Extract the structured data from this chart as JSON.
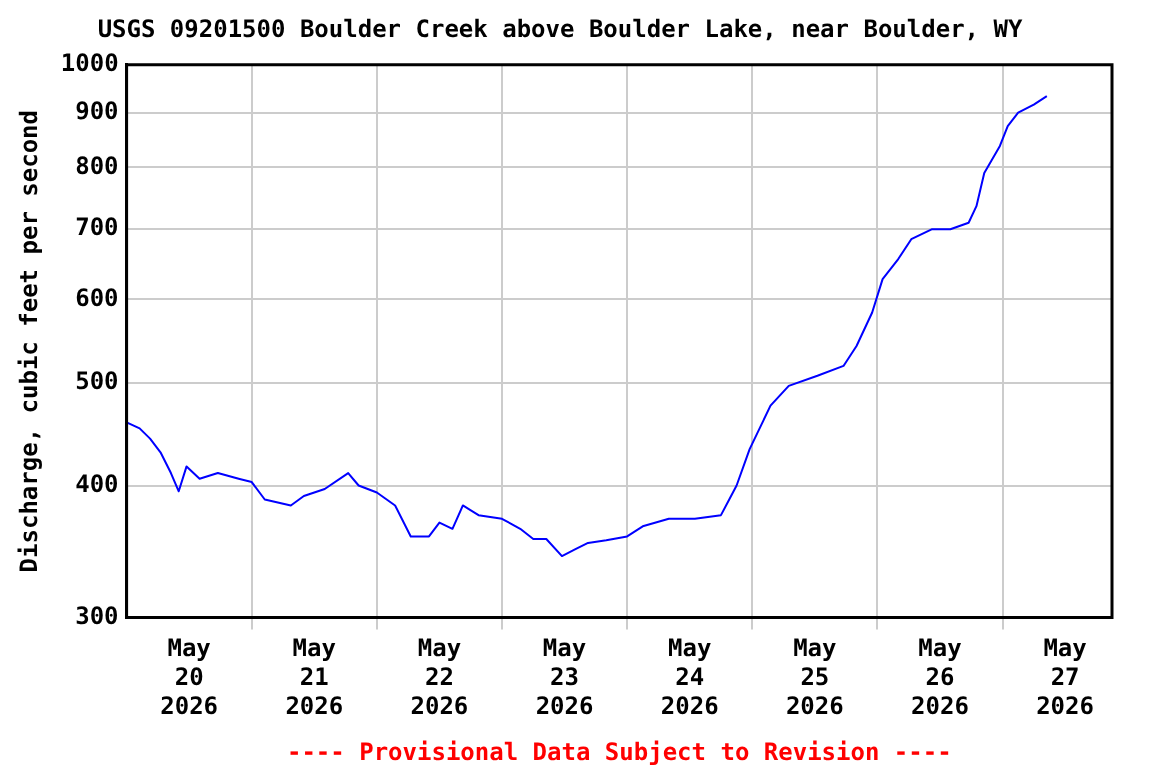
{
  "chart_data": {
    "type": "line",
    "title": "USGS 09201500 Boulder Creek above Boulder Lake, near Boulder, WY",
    "ylabel": "Discharge, cubic feet per second",
    "x": [
      "2026-05-20T00:00",
      "2026-05-20T02:30",
      "2026-05-20T04:30",
      "2026-05-20T06:30",
      "2026-05-20T08:30",
      "2026-05-20T10:00",
      "2026-05-20T11:30",
      "2026-05-20T14:00",
      "2026-05-20T17:30",
      "2026-05-20T21:30",
      "2026-05-21T00:00",
      "2026-05-21T02:30",
      "2026-05-21T07:30",
      "2026-05-21T10:00",
      "2026-05-21T14:00",
      "2026-05-21T18:30",
      "2026-05-21T20:30",
      "2026-05-22T00:00",
      "2026-05-22T03:30",
      "2026-05-22T06:30",
      "2026-05-22T10:00",
      "2026-05-22T12:00",
      "2026-05-22T14:30",
      "2026-05-22T16:30",
      "2026-05-22T19:30",
      "2026-05-23T00:00",
      "2026-05-23T03:30",
      "2026-05-23T06:00",
      "2026-05-23T08:30",
      "2026-05-23T11:30",
      "2026-05-23T14:00",
      "2026-05-23T16:30",
      "2026-05-23T20:00",
      "2026-05-24T00:00",
      "2026-05-24T03:00",
      "2026-05-24T08:00",
      "2026-05-24T13:00",
      "2026-05-24T18:00",
      "2026-05-24T21:00",
      "2026-05-24T23:30",
      "2026-05-25T03:30",
      "2026-05-25T07:00",
      "2026-05-25T12:30",
      "2026-05-25T17:30",
      "2026-05-25T20:00",
      "2026-05-25T23:00",
      "2026-05-26T01:00",
      "2026-05-26T04:00",
      "2026-05-26T06:30",
      "2026-05-26T10:30",
      "2026-05-26T14:00",
      "2026-05-26T17:30",
      "2026-05-26T19:00",
      "2026-05-26T20:30",
      "2026-05-26T23:30",
      "2026-05-27T01:00",
      "2026-05-27T03:00",
      "2026-05-27T06:00",
      "2026-05-27T08:30"
    ],
    "series": [
      {
        "color": "#0000ff",
        "values": [
          459,
          453,
          443,
          430,
          411,
          395,
          417,
          406,
          411,
          406,
          403,
          388,
          383,
          391,
          397,
          411,
          400,
          394,
          383,
          358,
          358,
          369,
          364,
          383,
          375,
          372,
          364,
          356,
          356,
          343,
          348,
          353,
          355,
          358,
          366,
          372,
          372,
          375,
          400,
          433,
          476,
          497,
          508,
          519,
          542,
          583,
          627,
          655,
          684,
          699,
          699,
          709,
          735,
          790,
          838,
          875,
          901,
          917,
          934
        ]
      }
    ],
    "xlim": [
      "2026-05-20T00:00",
      "2026-05-27T21:00"
    ],
    "xticks": [
      {
        "value": "2026-05-20T12:00",
        "label": "May 20 2026"
      },
      {
        "value": "2026-05-21T00:00",
        "label": null
      },
      {
        "value": "2026-05-21T12:00",
        "label": "May 21 2026"
      },
      {
        "value": "2026-05-22T00:00",
        "label": null
      },
      {
        "value": "2026-05-22T12:00",
        "label": "May 22 2026"
      },
      {
        "value": "2026-05-23T00:00",
        "label": null
      },
      {
        "value": "2026-05-23T12:00",
        "label": "May 23 2026"
      },
      {
        "value": "2026-05-24T00:00",
        "label": null
      },
      {
        "value": "2026-05-24T12:00",
        "label": "May 24 2026"
      },
      {
        "value": "2026-05-25T00:00",
        "label": null
      },
      {
        "value": "2026-05-25T12:00",
        "label": "May 25 2026"
      },
      {
        "value": "2026-05-26T00:00",
        "label": null
      },
      {
        "value": "2026-05-26T12:00",
        "label": "May 26 2026"
      },
      {
        "value": "2026-05-27T00:00",
        "label": null
      },
      {
        "value": "2026-05-27T12:00",
        "label": "May 27 2026"
      }
    ],
    "ylim": [
      300,
      1000
    ],
    "yticks": [
      300,
      400,
      500,
      600,
      700,
      800,
      900,
      1000
    ],
    "log": true,
    "grid": true,
    "annotations": [
      "---- Provisional Data Subject to Revision ----"
    ]
  }
}
